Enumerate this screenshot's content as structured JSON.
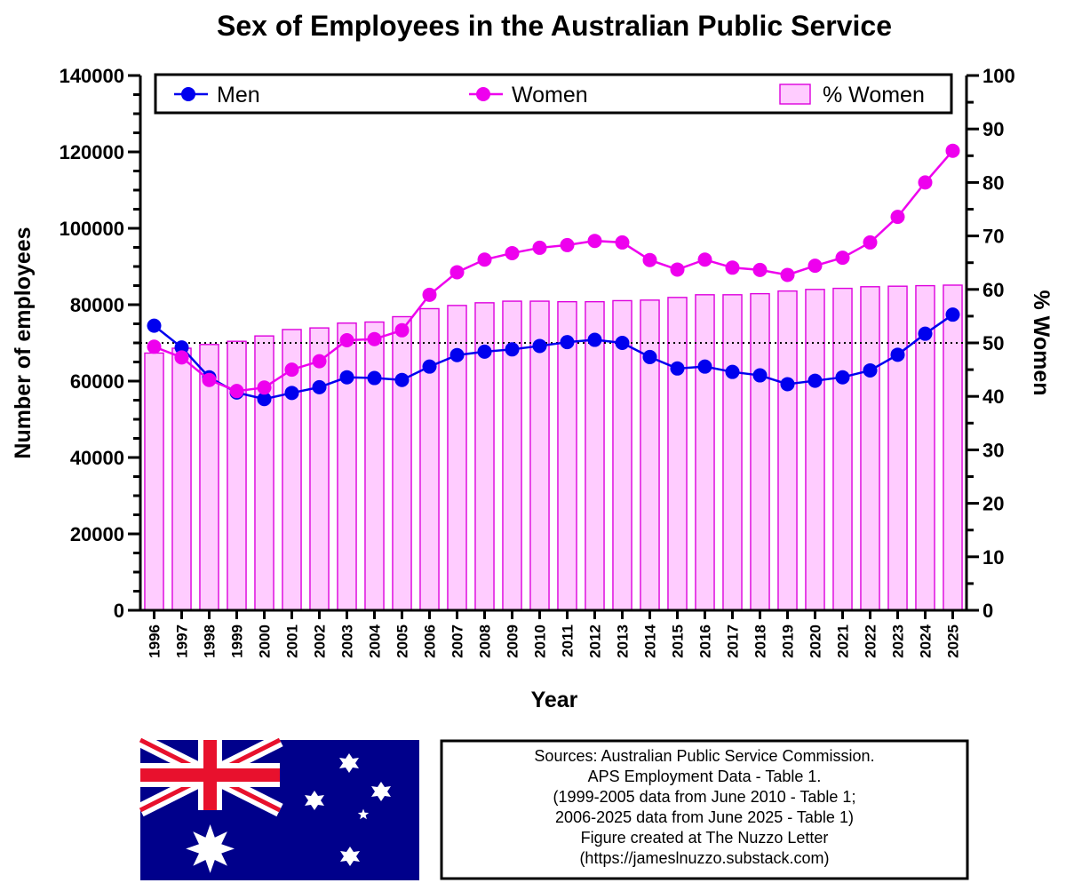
{
  "chart_data": {
    "type": "bar+line",
    "title": "Sex of Employees in the Australian Public Service",
    "xlabel": "Year",
    "ylabel_left": "Number of employees",
    "ylabel_right": "% Women",
    "ylim_left": [
      0,
      140000
    ],
    "ylim_right": [
      0,
      100
    ],
    "yticks_left": [
      "0",
      "20000",
      "40000",
      "60000",
      "80000",
      "100000",
      "120000",
      "140000"
    ],
    "yticks_right": [
      "0",
      "10",
      "20",
      "30",
      "40",
      "50",
      "60",
      "70",
      "80",
      "90",
      "100"
    ],
    "reference_line_right": 50,
    "categories": [
      "1996",
      "1997",
      "1998",
      "1999",
      "2000",
      "2001",
      "2002",
      "2003",
      "2004",
      "2005",
      "2006",
      "2007",
      "2008",
      "2009",
      "2010",
      "2011",
      "2012",
      "2013",
      "2014",
      "2015",
      "2016",
      "2017",
      "2018",
      "2019",
      "2020",
      "2021",
      "2022",
      "2023",
      "2024",
      "2025"
    ],
    "series": [
      {
        "name": "Men",
        "type": "line",
        "axis": "left",
        "color": "#0000ee",
        "values": [
          74500,
          68800,
          61000,
          57000,
          55300,
          56900,
          58400,
          61000,
          60800,
          60300,
          63800,
          66800,
          67700,
          68300,
          69200,
          70200,
          70800,
          70000,
          66300,
          63300,
          63800,
          62400,
          61500,
          59200,
          60100,
          61000,
          62800,
          66900,
          72400,
          77400
        ]
      },
      {
        "name": "Women",
        "type": "line",
        "axis": "left",
        "color": "#ee00ee",
        "values": [
          69000,
          66200,
          60300,
          57400,
          58300,
          63000,
          65200,
          70700,
          71000,
          73300,
          82600,
          88500,
          91800,
          93500,
          94900,
          95600,
          96700,
          96300,
          91700,
          89200,
          91800,
          89700,
          89100,
          87800,
          90200,
          92300,
          96300,
          103000,
          112000,
          120300
        ]
      },
      {
        "name": "% Women",
        "type": "bar",
        "axis": "right",
        "color": "#ffccff",
        "edge": "#dd00dd",
        "values": [
          48.1,
          49.0,
          49.7,
          50.3,
          51.3,
          52.5,
          52.8,
          53.7,
          53.9,
          54.9,
          56.4,
          57.0,
          57.5,
          57.8,
          57.8,
          57.7,
          57.7,
          57.9,
          58.0,
          58.5,
          59.0,
          59.0,
          59.2,
          59.7,
          60.0,
          60.2,
          60.5,
          60.6,
          60.7,
          60.8
        ]
      }
    ],
    "legend_placement": "top"
  },
  "footer": {
    "sources_lines": [
      "Sources: Australian Public Service Commission.",
      "APS Employment Data - Table 1.",
      "(1999-2005 data from June 2010 - Table 1;",
      "2006-2025 data from June 2025 - Table 1)",
      "Figure created at The Nuzzo Letter",
      "(https://jameslnuzzo.substack.com)"
    ],
    "flag_image": "australian-flag"
  }
}
